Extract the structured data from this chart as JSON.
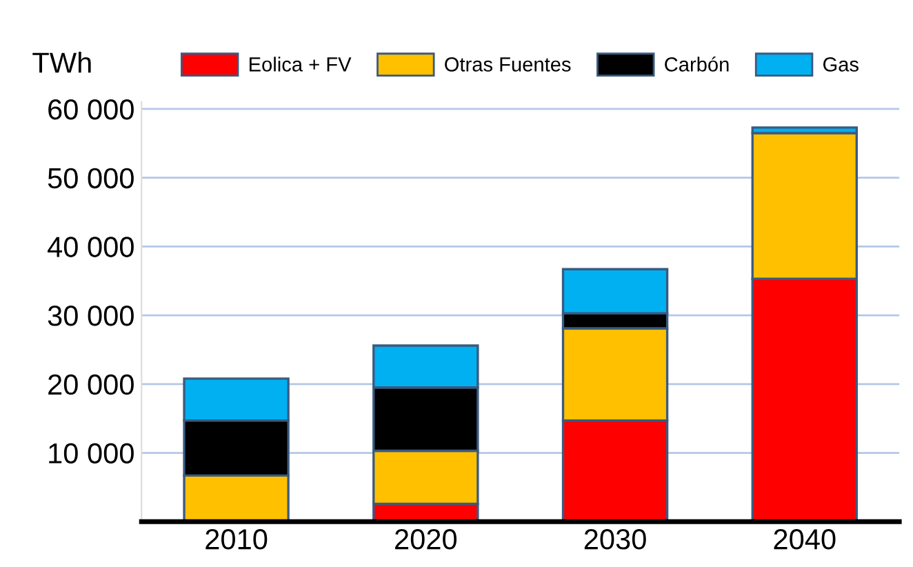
{
  "chart_data": {
    "type": "bar",
    "stacked": true,
    "ylabel": "TWh",
    "categories": [
      "2010",
      "2020",
      "2030",
      "2040"
    ],
    "series": [
      {
        "name": "Eolica + FV",
        "color": "#ff0000",
        "values": [
          0,
          2600,
          14700,
          35300
        ]
      },
      {
        "name": "Otras Fuentes",
        "color": "#ffc000",
        "values": [
          6700,
          7700,
          13400,
          21200
        ]
      },
      {
        "name": "Carbón",
        "color": "#000000",
        "values": [
          8000,
          9200,
          2200,
          0
        ]
      },
      {
        "name": "Gas",
        "color": "#00b0f0",
        "values": [
          6100,
          6100,
          6400,
          800
        ]
      }
    ],
    "ylim": [
      0,
      61000
    ],
    "yticks": [
      {
        "value": 10000,
        "label": "10 000"
      },
      {
        "value": 20000,
        "label": "20 000"
      },
      {
        "value": 30000,
        "label": "30 000"
      },
      {
        "value": 40000,
        "label": "40 000"
      },
      {
        "value": 50000,
        "label": "50 000"
      },
      {
        "value": 60000,
        "label": "60 000"
      }
    ],
    "grid": "y",
    "legend": "top"
  }
}
